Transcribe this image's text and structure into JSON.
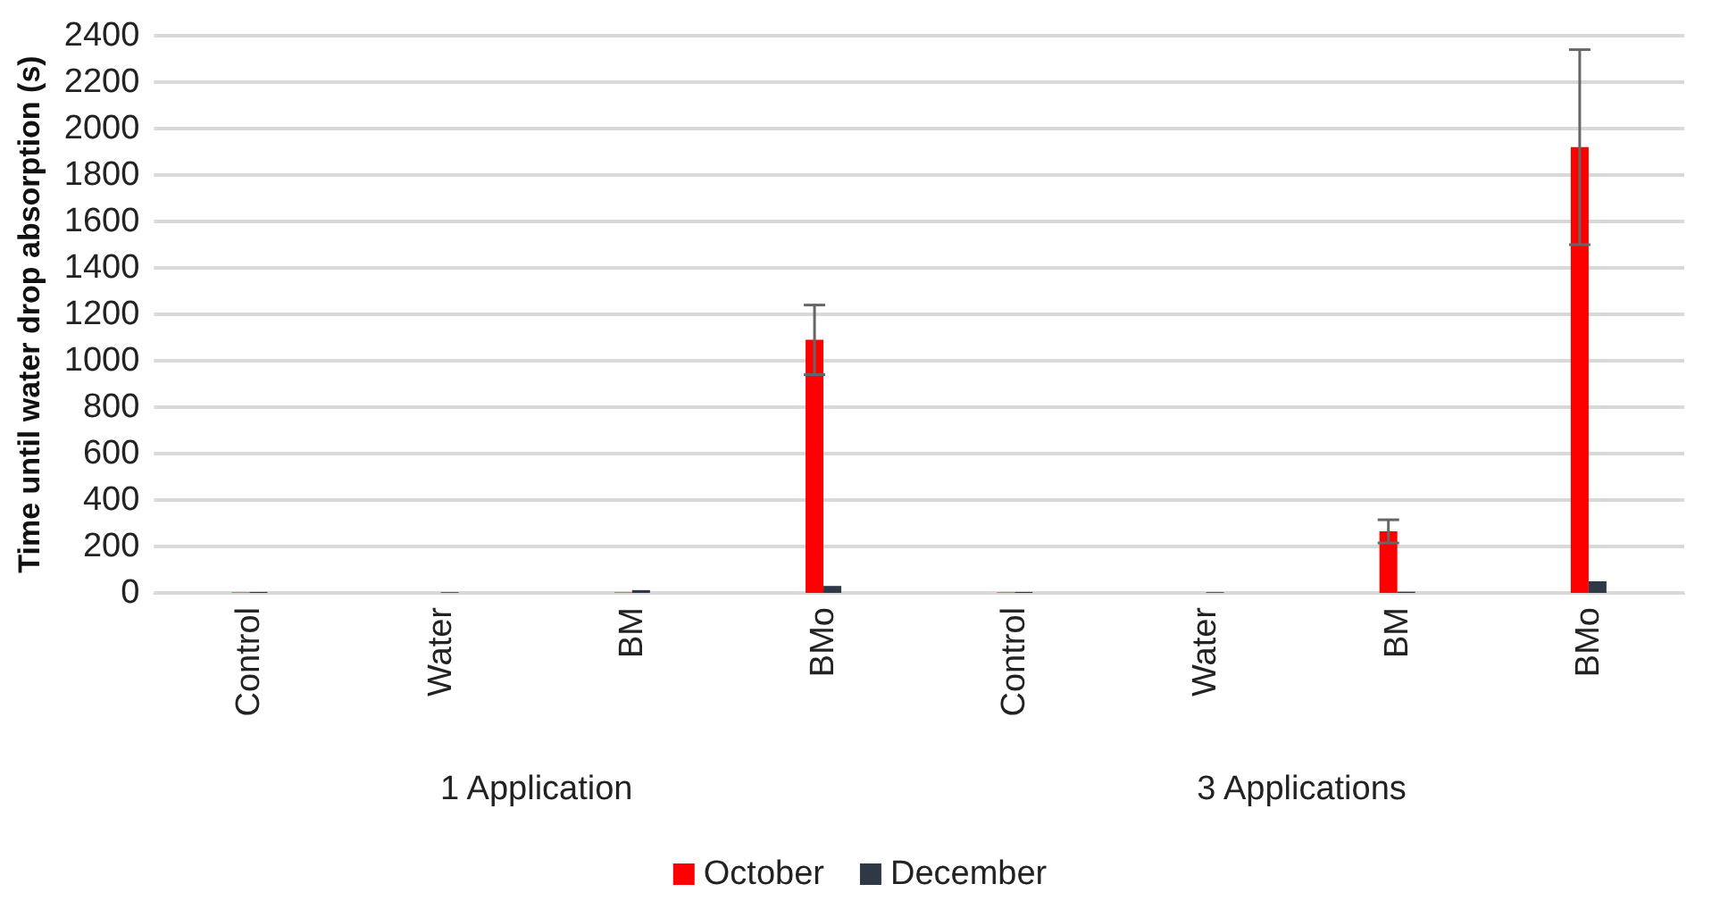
{
  "chart_data": {
    "type": "bar",
    "ylabel": "Time until water drop absorption (s)",
    "categories": [
      "Control",
      "Water",
      "BM",
      "BMo",
      "Control",
      "Water",
      "BM",
      "BMo"
    ],
    "series": [
      {
        "name": "October",
        "color": "#ff0000",
        "values": [
          2,
          null,
          2,
          1090,
          2,
          null,
          265,
          1920
        ],
        "errors": [
          null,
          null,
          null,
          150,
          null,
          null,
          50,
          420
        ]
      },
      {
        "name": "December",
        "color": "#2e3846",
        "values": [
          4,
          3,
          12,
          30,
          4,
          3,
          5,
          50
        ],
        "errors": [
          null,
          null,
          null,
          null,
          null,
          null,
          null,
          null
        ]
      }
    ],
    "annotations": [
      "1 Application",
      "3 Applications"
    ],
    "ylim": [
      0,
      2400
    ],
    "yticks": [
      0,
      200,
      400,
      600,
      800,
      1000,
      1200,
      1400,
      1600,
      1800,
      2000,
      2200,
      2400
    ],
    "grid": "y",
    "legend": "bottom"
  }
}
